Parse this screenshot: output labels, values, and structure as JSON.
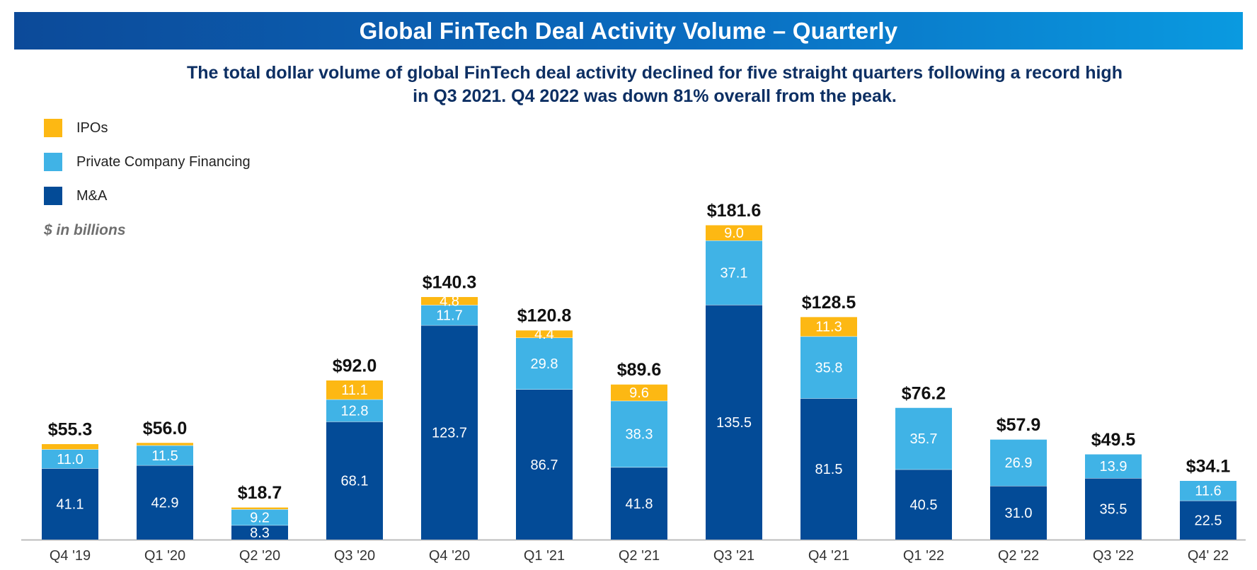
{
  "chart_data": {
    "type": "bar",
    "stacked": true,
    "title": "Global FinTech Deal Activity Volume – Quarterly",
    "subtitle": "The total dollar volume of global FinTech deal activity declined for five straight quarters following a record high in Q3 2021. Q4 2022 was down 81% overall from the peak.",
    "units_note": "$ in billions",
    "legend_position": "top-left",
    "grid": false,
    "categories": [
      "Q4 '19",
      "Q1 '20",
      "Q2 '20",
      "Q3 '20",
      "Q4 '20",
      "Q1 '21",
      "Q2 '21",
      "Q3 '21",
      "Q4 '21",
      "Q1 '22",
      "Q2 '22",
      "Q3 '22",
      "Q4' 22"
    ],
    "totals": [
      "$55.3",
      "$56.0",
      "$18.7",
      "$92.0",
      "$140.3",
      "$120.8",
      "$89.6",
      "$181.6",
      "$128.5",
      "$76.2",
      "$57.9",
      "$49.5",
      "$34.1"
    ],
    "series": [
      {
        "name": "M&A",
        "color": "#034b97",
        "values": [
          41.1,
          42.9,
          8.3,
          68.1,
          123.7,
          86.7,
          41.8,
          135.5,
          81.5,
          40.5,
          31.0,
          35.5,
          22.5
        ],
        "labels": [
          "41.1",
          "42.9",
          "8.3",
          "68.1",
          "123.7",
          "86.7",
          "41.8",
          "135.5",
          "81.5",
          "40.5",
          "31.0",
          "35.5",
          "22.5"
        ]
      },
      {
        "name": "Private Company Financing",
        "color": "#40b3e6",
        "values": [
          11.0,
          11.5,
          9.2,
          12.8,
          11.7,
          29.8,
          38.3,
          37.1,
          35.8,
          35.7,
          26.9,
          13.9,
          11.6
        ],
        "labels": [
          "11.0",
          "11.5",
          "9.2",
          "12.8",
          "11.7",
          "29.8",
          "38.3",
          "37.1",
          "35.8",
          "35.7",
          "26.9",
          "13.9",
          "11.6"
        ]
      },
      {
        "name": "IPOs",
        "color": "#fdb813",
        "values": [
          3.2,
          1.6,
          1.2,
          11.1,
          4.8,
          4.4,
          9.6,
          9.0,
          11.3,
          0,
          0,
          0,
          0
        ],
        "labels": [
          "",
          "",
          "",
          "11.1",
          "4.8",
          "4.4",
          "9.6",
          "9.0",
          "11.3",
          "",
          "",
          "",
          ""
        ]
      }
    ],
    "ylim": [
      0,
      181.6
    ]
  }
}
